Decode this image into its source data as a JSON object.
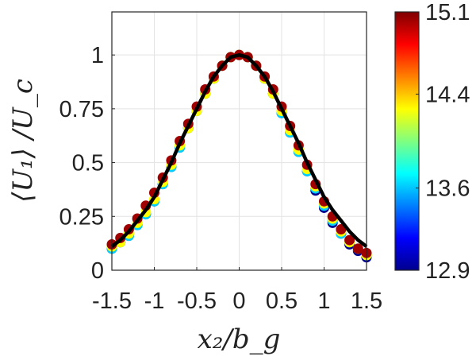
{
  "chart_data": {
    "type": "scatter",
    "xlabel": "x₂/b_g",
    "ylabel": "⟨U₁⟩ /U_c",
    "xlim": [
      -1.5,
      1.5
    ],
    "ylim": [
      0,
      1.2
    ],
    "grid": true,
    "x_ticks": [
      {
        "value": -1.5,
        "label": "-1.5"
      },
      {
        "value": -1.0,
        "label": "-1"
      },
      {
        "value": -0.5,
        "label": "-0.5"
      },
      {
        "value": 0.0,
        "label": "0"
      },
      {
        "value": 0.5,
        "label": "0.5"
      },
      {
        "value": 1.0,
        "label": "1"
      },
      {
        "value": 1.5,
        "label": "1.5"
      }
    ],
    "y_ticks": [
      {
        "value": 0,
        "label": "0"
      },
      {
        "value": 0.25,
        "label": "0.25"
      },
      {
        "value": 0.5,
        "label": "0.5"
      },
      {
        "value": 0.75,
        "label": "0.75"
      },
      {
        "value": 1.0,
        "label": "1"
      }
    ],
    "colorbar": {
      "colormap": "jet",
      "min": 12.9,
      "max": 15.1,
      "ticks": [
        {
          "value": 12.9,
          "label": "12.9"
        },
        {
          "value": 13.6,
          "label": "13.6"
        },
        {
          "value": 14.4,
          "label": "14.4"
        },
        {
          "value": 15.1,
          "label": "15.1"
        }
      ]
    },
    "reference_curve": {
      "color": "#000000",
      "x": [
        -1.5,
        -1.4,
        -1.3,
        -1.2,
        -1.1,
        -1.0,
        -0.9,
        -0.8,
        -0.7,
        -0.6,
        -0.5,
        -0.4,
        -0.3,
        -0.2,
        -0.1,
        0.0,
        0.1,
        0.2,
        0.3,
        0.4,
        0.5,
        0.6,
        0.7,
        0.8,
        0.9,
        1.0,
        1.1,
        1.2,
        1.3,
        1.4,
        1.5
      ],
      "y": [
        0.11,
        0.14,
        0.18,
        0.23,
        0.28,
        0.34,
        0.42,
        0.5,
        0.59,
        0.67,
        0.75,
        0.83,
        0.9,
        0.95,
        0.99,
        1.0,
        0.99,
        0.95,
        0.9,
        0.83,
        0.75,
        0.67,
        0.59,
        0.5,
        0.42,
        0.34,
        0.28,
        0.23,
        0.18,
        0.14,
        0.11
      ]
    },
    "series": [
      {
        "color_value": 12.9,
        "color": "#00008f",
        "x": [
          -1.5,
          -1.4,
          -1.3,
          -1.2,
          -1.1,
          -1.0,
          -0.9,
          -0.8,
          -0.7,
          -0.6,
          -0.5,
          -0.4,
          -0.3,
          -0.2,
          -0.1,
          0.0,
          0.1,
          0.2,
          0.3,
          0.4,
          0.5,
          0.6,
          0.7,
          0.8,
          0.9,
          1.0,
          1.1,
          1.2,
          1.3,
          1.4,
          1.5
        ],
        "y": [
          0.1,
          0.13,
          0.16,
          0.21,
          0.26,
          0.32,
          0.4,
          0.48,
          0.57,
          0.66,
          0.74,
          0.82,
          0.89,
          0.95,
          0.99,
          1.0,
          0.99,
          0.95,
          0.89,
          0.82,
          0.73,
          0.64,
          0.55,
          0.46,
          0.37,
          0.29,
          0.22,
          0.17,
          0.12,
          0.09,
          0.06
        ]
      },
      {
        "color_value": 13.6,
        "color": "#00cfff",
        "x": [
          -1.5,
          -1.4,
          -1.3,
          -1.2,
          -1.1,
          -1.0,
          -0.9,
          -0.8,
          -0.7,
          -0.6,
          -0.5,
          -0.4,
          -0.3,
          -0.2,
          -0.1,
          0.0,
          0.1,
          0.2,
          0.3,
          0.4,
          0.5,
          0.6,
          0.7,
          0.8,
          0.9,
          1.0,
          1.1,
          1.2,
          1.3,
          1.4,
          1.5
        ],
        "y": [
          0.1,
          0.13,
          0.16,
          0.21,
          0.26,
          0.32,
          0.4,
          0.48,
          0.57,
          0.66,
          0.74,
          0.82,
          0.89,
          0.95,
          0.99,
          1.0,
          0.99,
          0.95,
          0.89,
          0.82,
          0.73,
          0.64,
          0.55,
          0.46,
          0.38,
          0.3,
          0.23,
          0.17,
          0.13,
          0.1,
          0.07
        ]
      },
      {
        "color_value": 14.4,
        "color": "#ffff00",
        "x": [
          -1.5,
          -1.4,
          -1.3,
          -1.2,
          -1.1,
          -1.0,
          -0.9,
          -0.8,
          -0.7,
          -0.6,
          -0.5,
          -0.4,
          -0.3,
          -0.2,
          -0.1,
          0.0,
          0.1,
          0.2,
          0.3,
          0.4,
          0.5,
          0.6,
          0.7,
          0.8,
          0.9,
          1.0,
          1.1,
          1.2,
          1.3,
          1.4,
          1.5
        ],
        "y": [
          0.11,
          0.13,
          0.17,
          0.22,
          0.27,
          0.33,
          0.41,
          0.49,
          0.58,
          0.66,
          0.74,
          0.82,
          0.89,
          0.95,
          0.99,
          1.0,
          0.99,
          0.95,
          0.89,
          0.82,
          0.74,
          0.65,
          0.56,
          0.47,
          0.39,
          0.31,
          0.24,
          0.18,
          0.13,
          0.1,
          0.07
        ]
      },
      {
        "color_value": 15.1,
        "color": "#9f0000",
        "x": [
          -1.5,
          -1.4,
          -1.3,
          -1.2,
          -1.1,
          -1.0,
          -0.9,
          -0.8,
          -0.7,
          -0.6,
          -0.5,
          -0.4,
          -0.3,
          -0.2,
          -0.1,
          0.0,
          0.1,
          0.2,
          0.3,
          0.4,
          0.5,
          0.6,
          0.7,
          0.8,
          0.9,
          1.0,
          1.1,
          1.2,
          1.3,
          1.4,
          1.5
        ],
        "y": [
          0.12,
          0.15,
          0.19,
          0.24,
          0.3,
          0.36,
          0.43,
          0.51,
          0.6,
          0.68,
          0.76,
          0.84,
          0.9,
          0.95,
          0.99,
          1.0,
          0.99,
          0.95,
          0.9,
          0.84,
          0.76,
          0.67,
          0.58,
          0.49,
          0.4,
          0.32,
          0.25,
          0.19,
          0.14,
          0.1,
          0.08
        ]
      }
    ]
  }
}
